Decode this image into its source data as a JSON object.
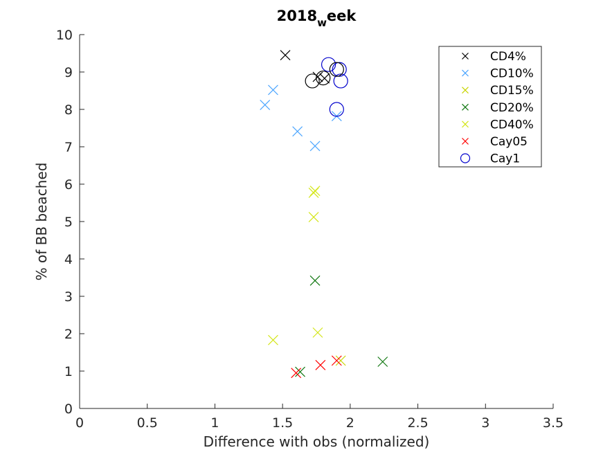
{
  "chart_data": {
    "type": "scatter",
    "title": {
      "main": "2018",
      "subscript": "w",
      "rest": "eek"
    },
    "xlabel": "Difference with obs (normalized)",
    "ylabel": "% of BB beached",
    "xlim": [
      0,
      3.5
    ],
    "ylim": [
      0,
      10
    ],
    "xticks": [
      0,
      0.5,
      1,
      1.5,
      2,
      2.5,
      3,
      3.5
    ],
    "xtick_labels": [
      "0",
      "0.5",
      "1",
      "1.5",
      "2",
      "2.5",
      "3",
      "3.5"
    ],
    "yticks": [
      0,
      1,
      2,
      3,
      4,
      5,
      6,
      7,
      8,
      9,
      10
    ],
    "ytick_labels": [
      "0",
      "1",
      "2",
      "3",
      "4",
      "5",
      "6",
      "7",
      "8",
      "9",
      "10"
    ],
    "grid": false,
    "legend_position": "top-right",
    "series": [
      {
        "name": "CD4%",
        "marker": "x",
        "color": "#000000",
        "legend_marker": "small",
        "points": [
          [
            1.52,
            9.45
          ],
          [
            1.76,
            8.87
          ],
          [
            1.81,
            8.83
          ]
        ]
      },
      {
        "name": "CD10%",
        "marker": "x",
        "color": "#4da6ff",
        "legend_marker": "small",
        "points": [
          [
            1.43,
            8.52
          ],
          [
            1.37,
            8.12
          ],
          [
            1.61,
            7.41
          ],
          [
            1.74,
            7.02
          ],
          [
            1.9,
            7.82
          ]
        ]
      },
      {
        "name": "CD15%",
        "marker": "x",
        "color": "#c8d400",
        "legend_marker": "small",
        "points": [
          [
            1.93,
            1.28
          ]
        ]
      },
      {
        "name": "CD20%",
        "marker": "x",
        "color": "#117711",
        "legend_marker": "small",
        "points": [
          [
            1.74,
            3.42
          ],
          [
            1.63,
            0.98
          ],
          [
            2.24,
            1.25
          ]
        ]
      },
      {
        "name": "CD40%",
        "marker": "x",
        "color": "#d4e61a",
        "legend_marker": "small",
        "points": [
          [
            1.73,
            5.77
          ],
          [
            1.74,
            5.82
          ],
          [
            1.73,
            5.12
          ],
          [
            1.43,
            1.83
          ],
          [
            1.76,
            2.03
          ]
        ]
      },
      {
        "name": "Cay05",
        "marker": "x",
        "color": "#ff0000",
        "legend_marker": "small",
        "points": [
          [
            1.6,
            0.95
          ],
          [
            1.78,
            1.16
          ],
          [
            1.9,
            1.28
          ]
        ]
      },
      {
        "name": "Cay1",
        "marker": "o",
        "color": "#0000cc",
        "legend_marker": "small",
        "points": [
          [
            1.84,
            9.2
          ],
          [
            1.92,
            9.07
          ],
          [
            1.93,
            8.76
          ],
          [
            1.9,
            8.0
          ]
        ]
      },
      {
        "name": "",
        "marker": "o",
        "color": "#000000",
        "legend": false,
        "points": [
          [
            1.72,
            8.76
          ],
          [
            1.8,
            8.84
          ],
          [
            1.9,
            9.07
          ]
        ]
      }
    ]
  }
}
